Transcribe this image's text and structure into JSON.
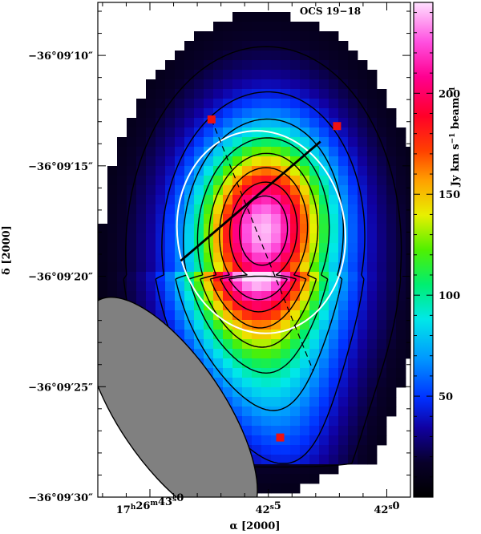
{
  "chart_data": {
    "type": "heatmap",
    "title": "OCS 19−18",
    "xlabel": "α [2000]",
    "ylabel": "δ [2000]",
    "colorbar_label": "Jy km s⁻¹ beam⁻¹",
    "colorbar_unit_parts": [
      "Jy km s",
      "−1",
      " beam",
      "−1"
    ],
    "colorbar_range": [
      0,
      245
    ],
    "colorbar_ticks": [
      {
        "value": 50,
        "label": "50"
      },
      {
        "value": 100,
        "label": "100"
      },
      {
        "value": 150,
        "label": "150"
      },
      {
        "value": 200,
        "label": "200"
      }
    ],
    "x_range_sec": [
      43.22,
      41.9
    ],
    "y_range_arcsec": [
      7.6,
      30.0
    ],
    "x_ticks": [
      {
        "value": 43.0,
        "parts": [
          "17",
          "h",
          "26",
          "m",
          "43",
          "s",
          "0"
        ]
      },
      {
        "value": 42.5,
        "parts": [
          "",
          "",
          "",
          "",
          "42",
          "s",
          "5"
        ]
      },
      {
        "value": 42.0,
        "parts": [
          "",
          "",
          "",
          "",
          "42",
          "s",
          "0"
        ]
      }
    ],
    "y_ticks": [
      {
        "value": 10,
        "label": "−36°09′10″"
      },
      {
        "value": 15,
        "label": "−36°09′15″"
      },
      {
        "value": 20,
        "label": "−36°09′20″"
      },
      {
        "value": 25,
        "label": "−36°09′25″"
      },
      {
        "value": 30,
        "label": "−36°09′30″"
      }
    ],
    "peak": {
      "x": 42.52,
      "y": 17.8,
      "value": 240
    },
    "source_fit": {
      "x": 42.53,
      "y": 18.0,
      "major_arcsec": 4.6,
      "minor_arcsec": 3.8,
      "pa_deg": 8
    },
    "contour_levels_fraction": [
      0.08,
      0.18,
      0.3,
      0.42,
      0.54,
      0.66,
      0.78,
      0.88
    ],
    "beam": {
      "x": 42.91,
      "y": 26.1,
      "major_arcsec": 6.0,
      "minor_arcsec": 2.4,
      "pa_deg": -34
    },
    "markers": [
      {
        "x": 42.74,
        "y": 12.9
      },
      {
        "x": 42.21,
        "y": 13.2
      },
      {
        "x": 42.45,
        "y": 27.3
      }
    ],
    "dashed_axis": {
      "from": [
        42.74,
        12.9
      ],
      "to": [
        42.31,
        24.3
      ]
    },
    "solid_axis": {
      "from": [
        42.87,
        19.3
      ],
      "to": [
        42.28,
        13.9
      ]
    },
    "grid": false,
    "legend": "none"
  },
  "colors": {
    "contour": "#000000",
    "fit_ellipse": "#ffffff",
    "marker": "#ee1111",
    "beam_fill": "#808080"
  }
}
